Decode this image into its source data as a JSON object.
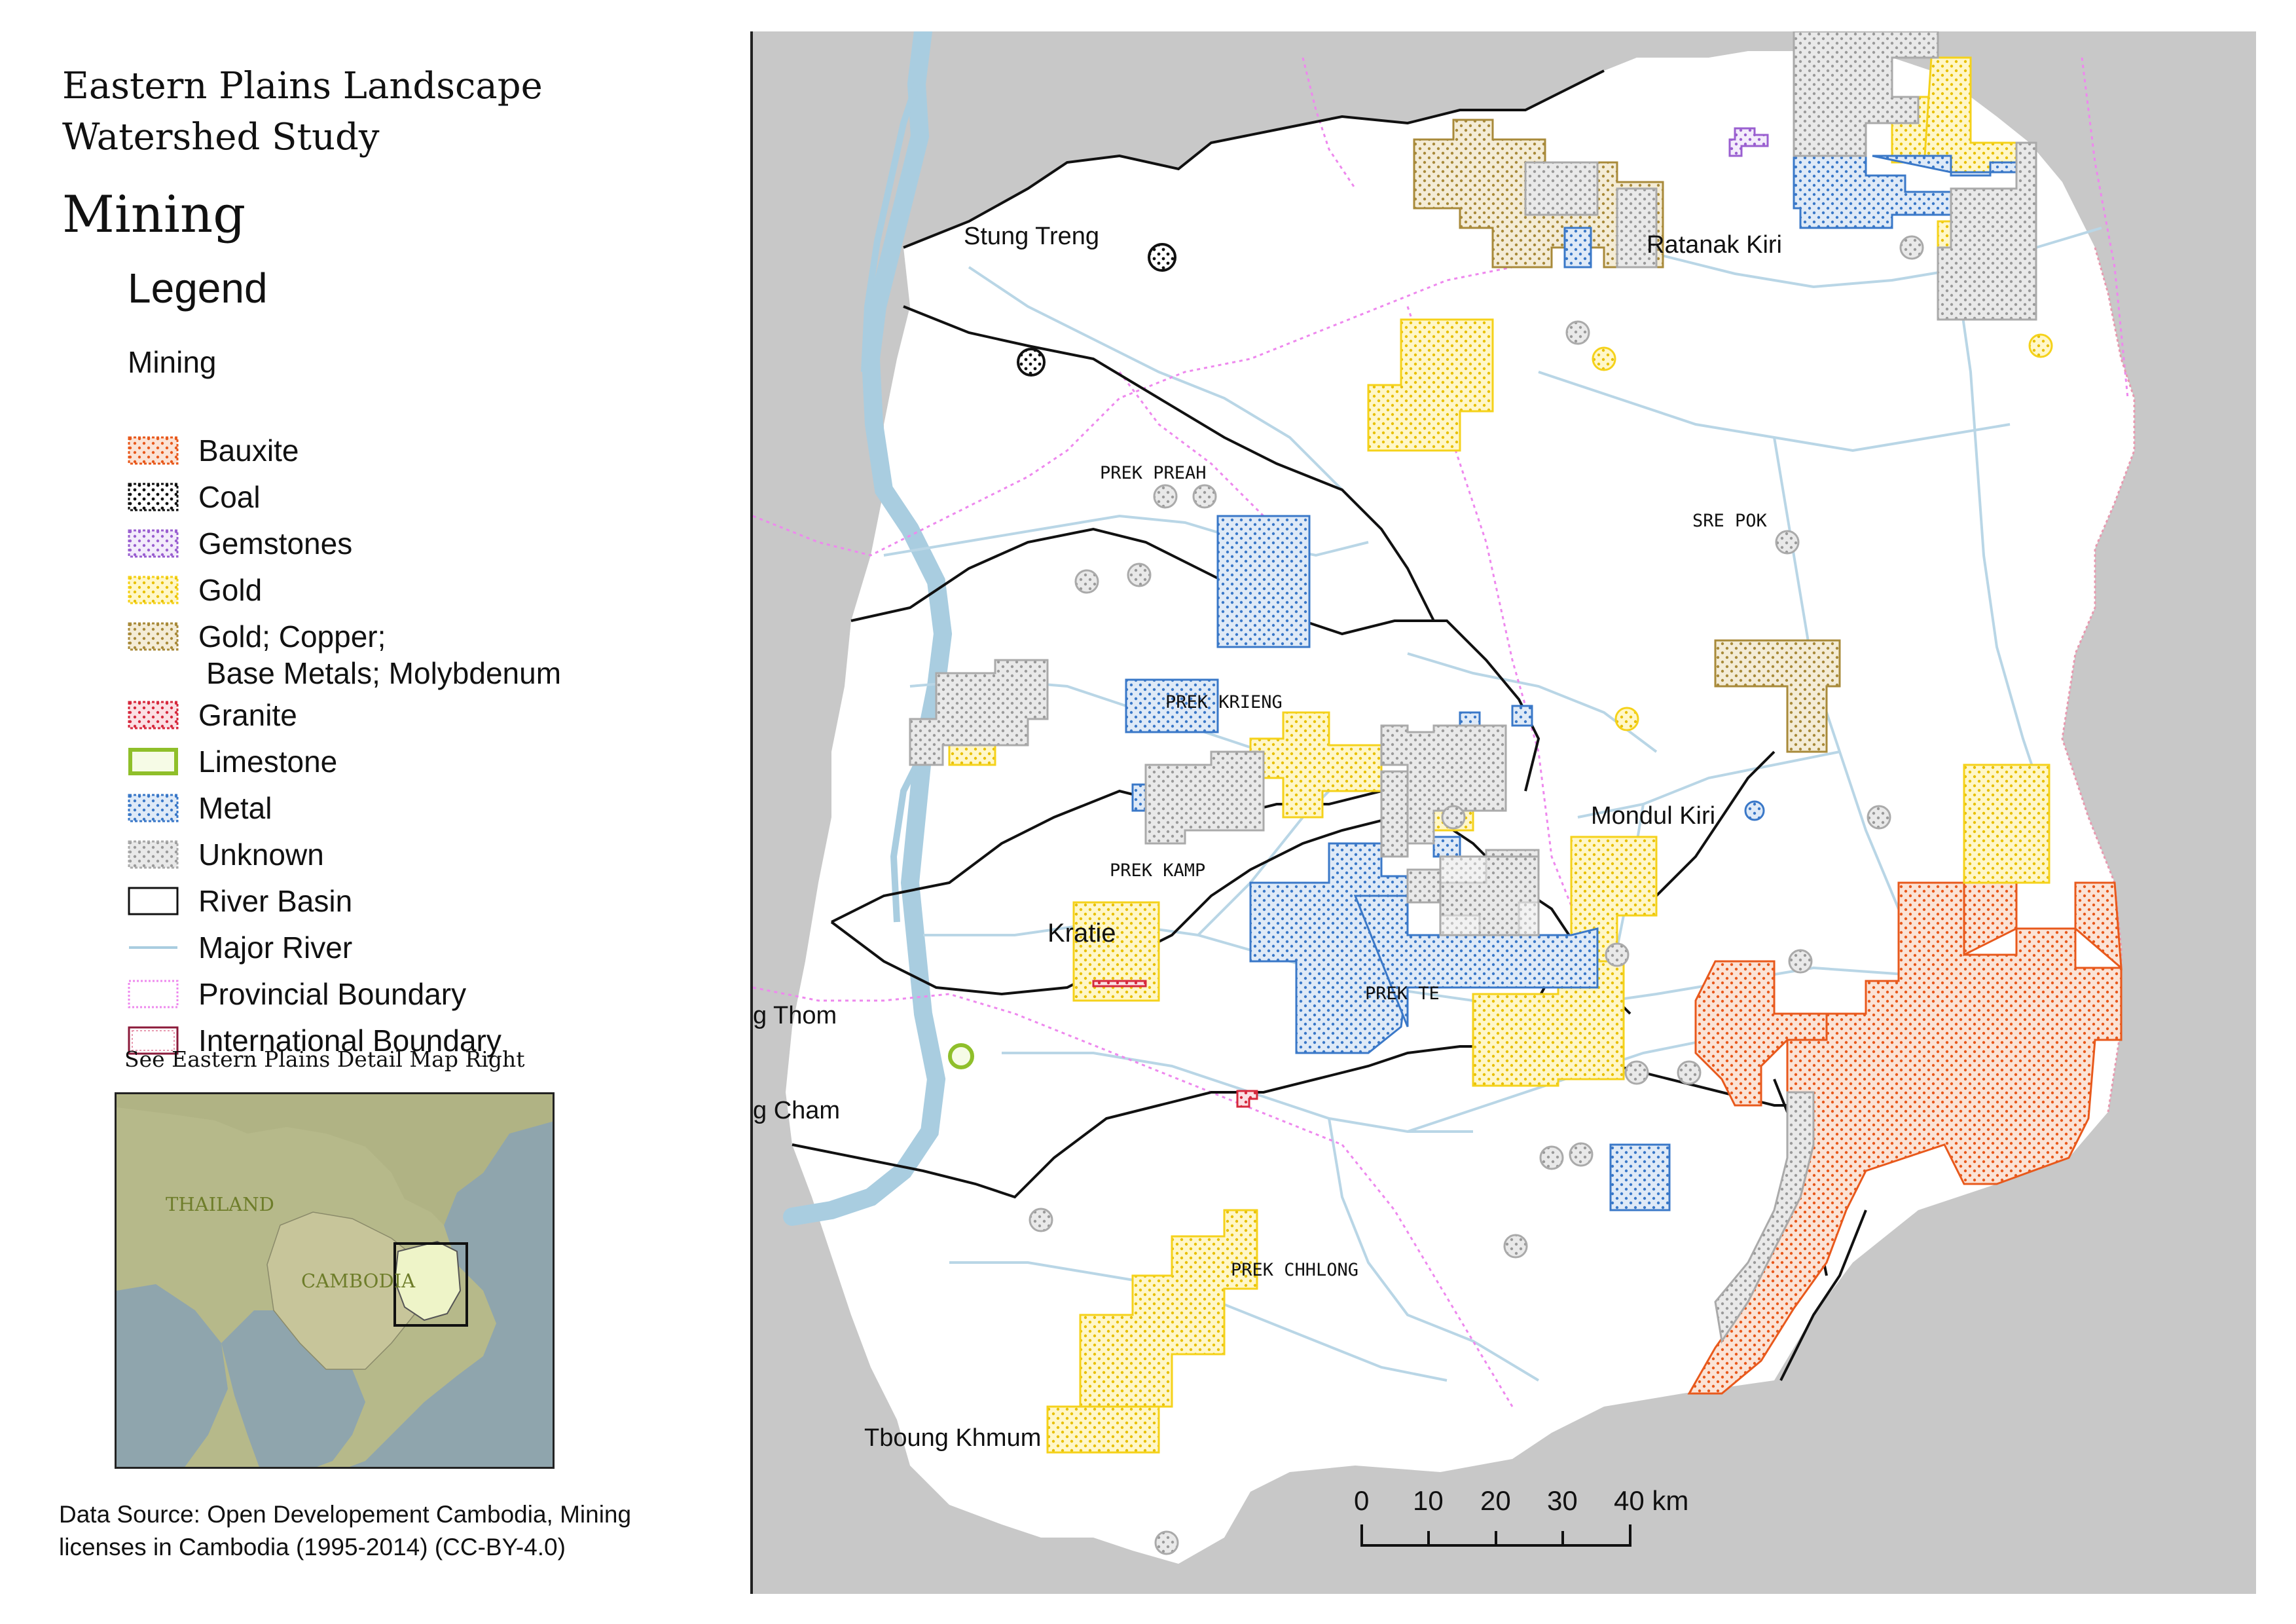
{
  "title": {
    "line1": "Eastern Plains Landscape",
    "line2": "Watershed Study"
  },
  "subject": "Mining",
  "legend": {
    "title": "Legend",
    "group_label": "Mining",
    "items": [
      {
        "label": "Bauxite",
        "color": "#e8591c",
        "style": "dotted-fill"
      },
      {
        "label": "Coal",
        "color": "#111111",
        "style": "dotted-fill"
      },
      {
        "label": "Gemstones",
        "color": "#9a5fd0",
        "style": "dotted-fill"
      },
      {
        "label": "Gold",
        "color": "#f5d21a",
        "style": "dotted-fill"
      },
      {
        "label": "Gold; Copper;",
        "label2": "Base Metals; Molybdenum",
        "color": "#a88a3a",
        "style": "dotted-fill"
      },
      {
        "label": "Granite",
        "color": "#d6283c",
        "style": "dotted-fill"
      },
      {
        "label": "Limestone",
        "color": "#8fbf2a",
        "style": "thick-outline"
      },
      {
        "label": "Metal",
        "color": "#3a78c8",
        "style": "dotted-fill"
      },
      {
        "label": "Unknown",
        "color": "#aaaaaa",
        "style": "dotted-fill"
      },
      {
        "label": "River Basin",
        "color": "#111111",
        "style": "outline"
      },
      {
        "label": "Major River",
        "color": "#a9cde0",
        "style": "line"
      },
      {
        "label": "Provincial Boundary",
        "color": "#ee88ee",
        "style": "dashed-outline"
      },
      {
        "label": "International Boundary",
        "color": "#8b1a3a",
        "style": "double-outline"
      }
    ]
  },
  "note": "See Eastern Plains Detail Map Right",
  "inset": {
    "labels": [
      "THAILAND",
      "CAMBODIA"
    ]
  },
  "source": {
    "line1": "Data Source: Open Developement Cambodia, Mining",
    "line2": "licenses in Cambodia (1995-2014) (CC-BY-4.0)"
  },
  "map": {
    "places": [
      {
        "name": "Stung Treng"
      },
      {
        "name": "Ratanak Kiri"
      },
      {
        "name": "Mondul Kiri"
      },
      {
        "name": "Kratie"
      },
      {
        "name": "g Thom"
      },
      {
        "name": "g Cham"
      },
      {
        "name": "Tboung Khmum"
      }
    ],
    "basins": [
      "PREK PREAH",
      "SRE POK",
      "PREK KRIENG",
      "PREK KAMP",
      "PREK TE",
      "PREK CHHLONG"
    ],
    "scale_bar": {
      "ticks": [
        "0",
        "10",
        "20",
        "30",
        "40 km"
      ]
    }
  },
  "colors": {
    "land_outside": "#c8c8c8",
    "study_area": "#ffffff",
    "mekong": "#a9cde0",
    "border": "#222222"
  }
}
